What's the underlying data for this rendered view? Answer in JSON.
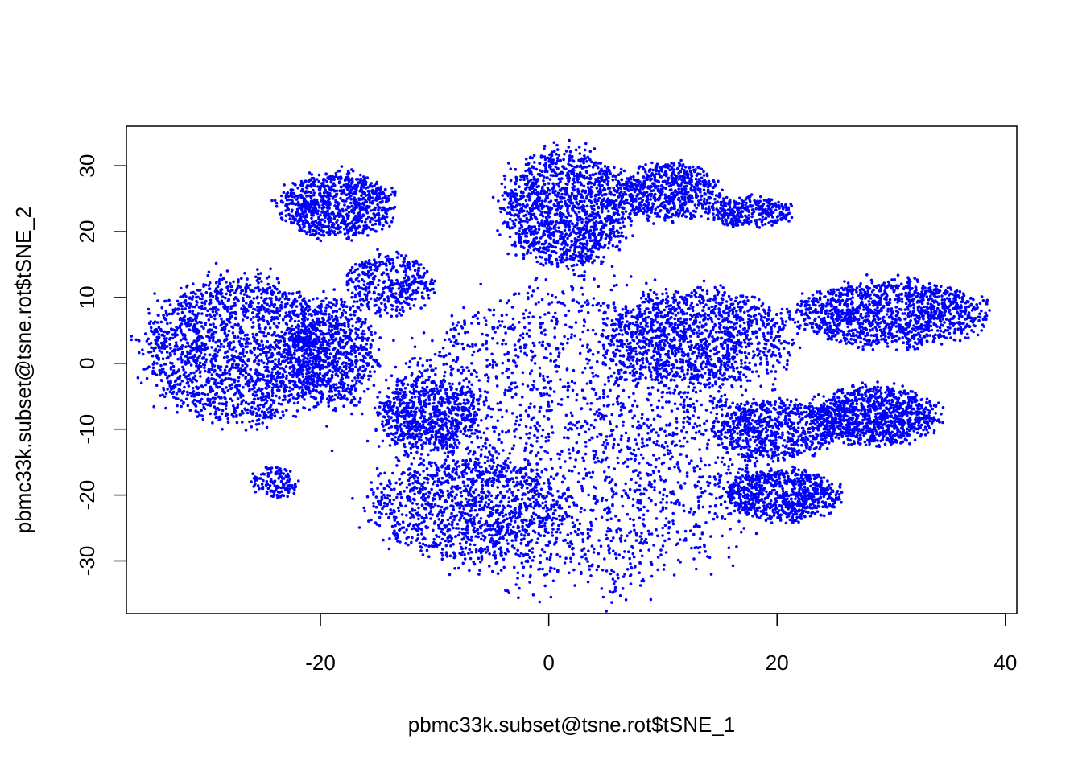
{
  "chart_data": {
    "type": "scatter",
    "title": "",
    "xlabel": "pbmc33k.subset@tsne.rot$tSNE_1",
    "ylabel": "pbmc33k.subset@tsne.rot$tSNE_2",
    "xlim": [
      -37,
      41
    ],
    "ylim": [
      -38,
      36
    ],
    "x_ticks": [
      -20,
      0,
      20,
      40
    ],
    "x_tick_labels": [
      "-20",
      "0",
      "20",
      "40"
    ],
    "y_ticks": [
      -30,
      -20,
      -10,
      0,
      10,
      20,
      30
    ],
    "y_tick_labels": [
      "-30",
      "-20",
      "-10",
      "0",
      "10",
      "20",
      "30"
    ],
    "grid": false,
    "legend": "none",
    "point_color": "#0000ff",
    "clusters": [
      {
        "cx": 2.5,
        "cy": -11.0,
        "rx": 15.5,
        "ry": 21.0,
        "density": 1.0
      },
      {
        "cx": -7.0,
        "cy": -22.0,
        "rx": 8.0,
        "ry": 7.0,
        "density": 0.35
      },
      {
        "cx": -10.5,
        "cy": -7.5,
        "rx": 4.0,
        "ry": 5.0,
        "density": 0.25
      },
      {
        "cx": 13.0,
        "cy": 4.0,
        "rx": 7.5,
        "ry": 6.5,
        "density": 0.45
      },
      {
        "cx": 20.5,
        "cy": -20.0,
        "rx": 4.5,
        "ry": 3.5,
        "density": 0.3
      },
      {
        "cx": 20.0,
        "cy": -10.0,
        "rx": 5.0,
        "ry": 4.0,
        "density": 0.25
      },
      {
        "cx": 28.5,
        "cy": -8.0,
        "rx": 5.0,
        "ry": 4.0,
        "density": 0.4
      },
      {
        "cx": 30.0,
        "cy": 7.5,
        "rx": 7.5,
        "ry": 4.5,
        "density": 0.5
      },
      {
        "cx": 1.5,
        "cy": 23.5,
        "rx": 5.0,
        "ry": 8.0,
        "density": 0.55
      },
      {
        "cx": 10.5,
        "cy": 26.0,
        "rx": 4.0,
        "ry": 4.0,
        "density": 0.25
      },
      {
        "cx": 17.5,
        "cy": 23.0,
        "rx": 3.5,
        "ry": 2.0,
        "density": 0.12
      },
      {
        "cx": -27.0,
        "cy": 2.0,
        "rx": 7.5,
        "ry": 10.0,
        "density": 0.75
      },
      {
        "cx": -19.0,
        "cy": 1.5,
        "rx": 3.5,
        "ry": 7.5,
        "density": 0.3
      },
      {
        "cx": -18.5,
        "cy": 24.0,
        "rx": 4.5,
        "ry": 4.5,
        "density": 0.35
      },
      {
        "cx": -14.0,
        "cy": 12.0,
        "rx": 3.5,
        "ry": 4.0,
        "density": 0.15
      },
      {
        "cx": -24.0,
        "cy": -18.0,
        "rx": 1.8,
        "ry": 2.2,
        "density": 0.05
      }
    ]
  }
}
